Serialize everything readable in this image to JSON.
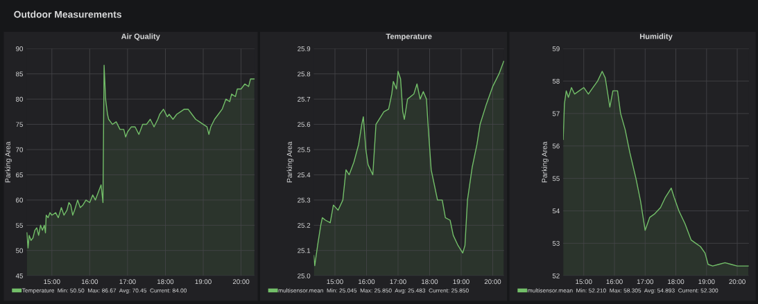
{
  "chart_data": [
    {
      "type": "area",
      "title": "Air Quality",
      "ylabel": "Parking Area",
      "annotations": [
        "Outdoor Measurements",
        "Min: 50.50  Max: 86.67  Avg: 70.45  Current: 84.00"
      ],
      "grid": true,
      "legend": "bottom",
      "marker": "none",
      "line_style": "solid",
      "xlim": [
        14.33,
        20.36
      ],
      "ylim": [
        45,
        90
      ],
      "yticks": [
        45,
        50,
        55,
        60,
        65,
        70,
        75,
        80,
        85,
        90
      ],
      "xticks": [
        {
          "value": 15,
          "label": "15:00"
        },
        {
          "value": 16,
          "label": "16:00"
        },
        {
          "value": 17,
          "label": "17:00"
        },
        {
          "value": 18,
          "label": "18:00"
        },
        {
          "value": 19,
          "label": "19:00"
        },
        {
          "value": 20,
          "label": "20:00"
        }
      ],
      "series": [
        {
          "name": "Temperature",
          "color": "#73bf69",
          "x": [
            14.34,
            14.37,
            14.4,
            14.45,
            14.5,
            14.55,
            14.6,
            14.65,
            14.7,
            14.75,
            14.8,
            14.83,
            14.85,
            14.9,
            14.95,
            15.0,
            15.1,
            15.17,
            15.25,
            15.32,
            15.4,
            15.45,
            15.5,
            15.55,
            15.6,
            15.68,
            15.75,
            15.82,
            15.9,
            16.0,
            16.08,
            16.15,
            16.25,
            16.3,
            16.35,
            16.38,
            16.42,
            16.47,
            16.5,
            16.6,
            16.7,
            16.8,
            16.9,
            16.95,
            17.0,
            17.1,
            17.2,
            17.3,
            17.4,
            17.5,
            17.6,
            17.7,
            17.8,
            17.85,
            17.95,
            18.05,
            18.1,
            18.2,
            18.3,
            18.4,
            18.5,
            18.6,
            18.7,
            18.8,
            18.9,
            19.0,
            19.1,
            19.15,
            19.2,
            19.3,
            19.4,
            19.5,
            19.6,
            19.7,
            19.75,
            19.85,
            19.9,
            20.0,
            20.1,
            20.2,
            20.25,
            20.35
          ],
          "values": [
            53.5,
            50.5,
            53,
            52,
            52.5,
            54,
            54.5,
            53,
            55,
            54,
            55,
            53.5,
            57,
            56.5,
            57.5,
            57,
            57.5,
            56.5,
            58.5,
            57,
            58,
            59.5,
            59,
            57,
            58,
            60,
            58.5,
            59,
            60,
            59.5,
            61,
            60,
            62,
            63,
            59.5,
            86.7,
            80,
            77,
            76,
            75,
            75.5,
            74,
            74,
            72.5,
            73.5,
            74.5,
            74.5,
            73,
            75,
            75,
            76,
            74.5,
            76,
            77,
            78,
            76.5,
            77,
            76,
            77,
            77.5,
            78,
            78,
            77,
            76,
            75.5,
            75,
            74.5,
            73,
            74.5,
            76,
            77,
            78,
            80,
            79.5,
            81,
            80.5,
            82,
            82,
            83,
            82.5,
            84,
            84
          ]
        }
      ]
    },
    {
      "type": "area",
      "title": "Temperature",
      "ylabel": "Parking Area",
      "annotations": [
        "Min: 25.045  Max: 25.850  Avg: 25.483  Current: 25.850"
      ],
      "grid": true,
      "legend": "bottom",
      "marker": "none",
      "line_style": "solid",
      "xlim": [
        14.33,
        20.36
      ],
      "ylim": [
        25.0,
        25.9
      ],
      "yticks": [
        {
          "value": 25.0,
          "label": "25.0"
        },
        25.1,
        25.2,
        25.3,
        25.4,
        25.5,
        25.6,
        25.7,
        25.8,
        25.9
      ],
      "xticks": [
        {
          "value": 15,
          "label": "15:00"
        },
        {
          "value": 16,
          "label": "16:00"
        },
        {
          "value": 17,
          "label": "17:00"
        },
        {
          "value": 18,
          "label": "18:00"
        },
        {
          "value": 19,
          "label": "19:00"
        },
        {
          "value": 20,
          "label": "20:00"
        }
      ],
      "series": [
        {
          "name": "multisensor.mean",
          "color": "#73bf69",
          "x": [
            14.33,
            14.36,
            14.45,
            14.55,
            14.6,
            14.7,
            14.85,
            14.95,
            15.1,
            15.25,
            15.35,
            15.45,
            15.6,
            15.75,
            15.85,
            15.9,
            15.98,
            16.05,
            16.2,
            16.3,
            16.4,
            16.55,
            16.7,
            16.8,
            16.85,
            16.95,
            17.0,
            17.08,
            17.15,
            17.2,
            17.3,
            17.5,
            17.6,
            17.7,
            17.8,
            17.9,
            17.95,
            18.05,
            18.15,
            18.25,
            18.4,
            18.5,
            18.65,
            18.75,
            18.9,
            19.05,
            19.12,
            19.2,
            19.35,
            19.5,
            19.6,
            19.8,
            20.0,
            20.2,
            20.35
          ],
          "values": [
            25.08,
            25.04,
            25.12,
            25.2,
            25.23,
            25.22,
            25.21,
            25.28,
            25.26,
            25.3,
            25.42,
            25.4,
            25.45,
            25.52,
            25.6,
            25.63,
            25.5,
            25.44,
            25.4,
            25.6,
            25.62,
            25.65,
            25.66,
            25.72,
            25.77,
            25.74,
            25.81,
            25.78,
            25.65,
            25.62,
            25.7,
            25.72,
            25.76,
            25.7,
            25.73,
            25.7,
            25.6,
            25.42,
            25.36,
            25.3,
            25.3,
            25.23,
            25.22,
            25.16,
            25.12,
            25.09,
            25.12,
            25.3,
            25.43,
            25.52,
            25.6,
            25.68,
            25.75,
            25.8,
            25.85
          ]
        }
      ]
    },
    {
      "type": "area",
      "title": "Humidity",
      "ylabel": "Parking Area",
      "annotations": [
        "Min: 52.210  Max: 58.305  Avg: 54.893  Current: 52.300"
      ],
      "grid": true,
      "legend": "bottom",
      "marker": "none",
      "line_style": "solid",
      "xlim": [
        14.33,
        20.38
      ],
      "ylim": [
        52,
        59
      ],
      "yticks": [
        52,
        53,
        54,
        55,
        56,
        57,
        58,
        59
      ],
      "xticks": [
        {
          "value": 15,
          "label": "15:00"
        },
        {
          "value": 16,
          "label": "16:00"
        },
        {
          "value": 17,
          "label": "17:00"
        },
        {
          "value": 18,
          "label": "18:00"
        },
        {
          "value": 19,
          "label": "19:00"
        },
        {
          "value": 20,
          "label": "20:00"
        }
      ],
      "series": [
        {
          "name": "multisensor.mean",
          "color": "#73bf69",
          "x": [
            14.33,
            14.37,
            14.43,
            14.5,
            14.6,
            14.7,
            14.85,
            15.0,
            15.15,
            15.3,
            15.45,
            15.6,
            15.7,
            15.8,
            15.85,
            15.95,
            16.1,
            16.2,
            16.35,
            16.5,
            16.7,
            16.85,
            17.0,
            17.15,
            17.3,
            17.5,
            17.65,
            17.85,
            17.95,
            18.1,
            18.3,
            18.5,
            18.65,
            18.8,
            18.95,
            19.05,
            19.2,
            19.4,
            19.6,
            19.8,
            20.0,
            20.2,
            20.36
          ],
          "values": [
            56.2,
            57.3,
            57.7,
            57.5,
            57.8,
            57.6,
            57.7,
            57.8,
            57.6,
            57.8,
            58.0,
            58.3,
            58.1,
            57.5,
            57.2,
            57.7,
            57.7,
            57.0,
            56.5,
            55.8,
            55.0,
            54.3,
            53.4,
            53.8,
            53.9,
            54.1,
            54.4,
            54.7,
            54.4,
            54.0,
            53.6,
            53.1,
            53.0,
            52.9,
            52.7,
            52.35,
            52.3,
            52.35,
            52.4,
            52.35,
            52.3,
            52.3,
            52.3
          ]
        }
      ]
    }
  ]
}
